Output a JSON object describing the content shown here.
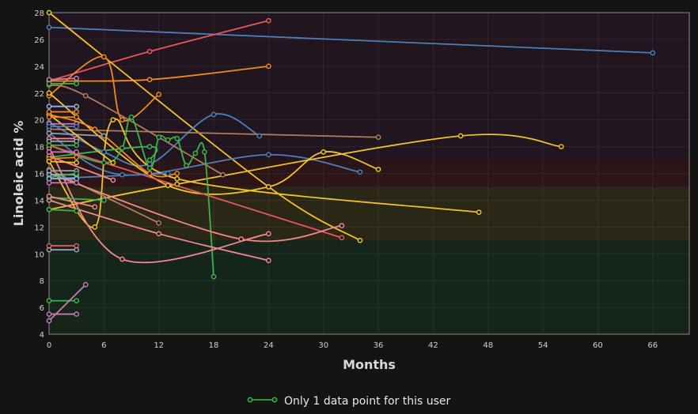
{
  "chart_data": {
    "type": "line",
    "title": "",
    "xlabel": "Months",
    "ylabel": "Linoleic acid %",
    "xlim": [
      0,
      70
    ],
    "ylim": [
      4,
      28
    ],
    "x_ticks": [
      0,
      6,
      12,
      18,
      24,
      30,
      36,
      42,
      48,
      54,
      60,
      66
    ],
    "y_ticks": [
      4,
      6,
      8,
      10,
      12,
      14,
      16,
      18,
      20,
      22,
      24,
      26,
      28
    ],
    "grid": true,
    "legend_position": "bottom-center",
    "legend": [
      {
        "label": "Only 1 data point for this user",
        "color": "#3bb54a"
      }
    ],
    "background_bands": [
      {
        "y_from": 4,
        "y_to": 11,
        "color": "#15251a"
      },
      {
        "y_from": 11,
        "y_to": 15,
        "color": "#2a2716"
      },
      {
        "y_from": 15,
        "y_to": 17,
        "color": "#2b1517"
      },
      {
        "y_from": 17,
        "y_to": 28,
        "color": "#21151f"
      }
    ],
    "series": [
      {
        "color": "#4f7fba",
        "x": [
          0,
          66
        ],
        "y": [
          26.9,
          25.0
        ]
      },
      {
        "color": "#e8575a",
        "x": [
          0,
          11,
          24
        ],
        "y": [
          22.9,
          25.1,
          27.4
        ]
      },
      {
        "color": "#f08a1e",
        "x": [
          0,
          11,
          24
        ],
        "y": [
          22.9,
          23.0,
          24.0
        ]
      },
      {
        "color": "#f2c12e",
        "x": [
          0,
          24,
          34
        ],
        "y": [
          28.0,
          15.0,
          11.0
        ]
      },
      {
        "color": "#f08a1e",
        "x": [
          0,
          6,
          8,
          12
        ],
        "y": [
          21.8,
          24.7,
          20.0,
          21.9
        ]
      },
      {
        "color": "#4f7fba",
        "x": [
          0,
          6,
          11,
          18,
          23
        ],
        "y": [
          19.8,
          17.6,
          16.7,
          20.4,
          18.8
        ]
      },
      {
        "color": "#b07d5e",
        "x": [
          0,
          36
        ],
        "y": [
          19.3,
          18.7
        ]
      },
      {
        "color": "#4f7fba",
        "x": [
          0,
          8,
          24,
          34
        ],
        "y": [
          19.0,
          15.9,
          17.4,
          16.1
        ]
      },
      {
        "color": "#b07d5e",
        "x": [
          0,
          4,
          19
        ],
        "y": [
          22.6,
          21.8,
          15.9
        ]
      },
      {
        "color": "#f2c12e",
        "x": [
          0,
          13,
          24,
          30,
          36
        ],
        "y": [
          22.0,
          15.1,
          15.0,
          17.6,
          16.3
        ]
      },
      {
        "color": "#f2c12e",
        "x": [
          0,
          14,
          45,
          56
        ],
        "y": [
          13.3,
          15.2,
          18.8,
          18.0
        ]
      },
      {
        "color": "#f2c12e",
        "x": [
          0,
          5,
          7,
          14,
          47
        ],
        "y": [
          16.9,
          12.0,
          20.0,
          15.6,
          13.1
        ]
      },
      {
        "color": "#3bb54a",
        "x": [
          0,
          6,
          8,
          9,
          11,
          12,
          13,
          14,
          15,
          16,
          17,
          18
        ],
        "y": [
          18.1,
          16.8,
          17.9,
          20.2,
          16.4,
          18.7,
          18.5,
          18.6,
          16.6,
          17.5,
          17.6,
          8.3
        ]
      },
      {
        "color": "#3bb54a",
        "x": [
          0,
          11,
          11
        ],
        "y": [
          17.2,
          18.0,
          17.0
        ]
      },
      {
        "color": "#e8575a",
        "x": [
          0,
          32
        ],
        "y": [
          18.1,
          11.2
        ]
      },
      {
        "color": "#f08a1e",
        "x": [
          0,
          5,
          11,
          14
        ],
        "y": [
          20.4,
          19.3,
          16.0,
          16.0
        ]
      },
      {
        "color": "#b07d5e",
        "x": [
          0,
          12
        ],
        "y": [
          16.3,
          12.3
        ]
      },
      {
        "color": "#f4888e",
        "x": [
          0,
          8,
          24
        ],
        "y": [
          17.9,
          9.6,
          11.5
        ]
      },
      {
        "color": "#f4888e",
        "x": [
          0,
          12,
          24
        ],
        "y": [
          14.0,
          11.5,
          9.5
        ]
      },
      {
        "color": "#f4888e",
        "x": [
          0,
          21,
          32
        ],
        "y": [
          16.0,
          11.1,
          12.1
        ]
      },
      {
        "color": "#3bb54a",
        "x": [
          0,
          6
        ],
        "y": [
          14.2,
          14.0
        ]
      },
      {
        "color": "#4f7fba",
        "x": [
          0,
          13
        ],
        "y": [
          15.6,
          16.0
        ]
      },
      {
        "color": "#f4888e",
        "x": [
          0,
          5
        ],
        "y": [
          14.3,
          13.5
        ]
      },
      {
        "color": "#9aa3ad",
        "x": [
          0,
          6
        ],
        "y": [
          19.0,
          18.8
        ]
      },
      {
        "color": "#f4888e",
        "x": [
          0,
          7
        ],
        "y": [
          17.3,
          15.5
        ]
      },
      {
        "color": "#f2c12e",
        "x": [
          0,
          7
        ],
        "y": [
          20.4,
          16.8
        ]
      },
      {
        "color": "#3bb54a",
        "x": [
          0,
          3
        ],
        "y": [
          22.7,
          22.7
        ]
      },
      {
        "color": "#c97bb3",
        "x": [
          0,
          3
        ],
        "y": [
          23.0,
          23.1
        ]
      },
      {
        "color": "#93b6dc",
        "x": [
          0,
          3
        ],
        "y": [
          21.0,
          21.0
        ]
      },
      {
        "color": "#f08a1e",
        "x": [
          0,
          3
        ],
        "y": [
          20.6,
          20.6
        ]
      },
      {
        "color": "#f08a1e",
        "x": [
          0,
          3
        ],
        "y": [
          20.2,
          20.2
        ]
      },
      {
        "color": "#c97bb3",
        "x": [
          0,
          3
        ],
        "y": [
          19.7,
          19.7
        ]
      },
      {
        "color": "#4f7fba",
        "x": [
          0,
          3
        ],
        "y": [
          19.5,
          19.5
        ]
      },
      {
        "color": "#f4888e",
        "x": [
          0,
          3
        ],
        "y": [
          18.6,
          18.6
        ]
      },
      {
        "color": "#9aa3ad",
        "x": [
          0,
          3
        ],
        "y": [
          18.4,
          18.4
        ]
      },
      {
        "color": "#3bb54a",
        "x": [
          0,
          3
        ],
        "y": [
          18.1,
          18.1
        ]
      },
      {
        "color": "#c97bb3",
        "x": [
          0,
          3
        ],
        "y": [
          17.6,
          17.6
        ]
      },
      {
        "color": "#f08a1e",
        "x": [
          0,
          3
        ],
        "y": [
          17.1,
          17.2
        ]
      },
      {
        "color": "#f2c12e",
        "x": [
          0,
          3
        ],
        "y": [
          16.9,
          16.8
        ]
      },
      {
        "color": "#9aa3ad",
        "x": [
          0,
          3
        ],
        "y": [
          16.2,
          16.2
        ]
      },
      {
        "color": "#93b6dc",
        "x": [
          0,
          3
        ],
        "y": [
          15.9,
          15.9
        ]
      },
      {
        "color": "#3bb54a",
        "x": [
          0,
          3
        ],
        "y": [
          15.7,
          16.0
        ]
      },
      {
        "color": "#93b6dc",
        "x": [
          0,
          3
        ],
        "y": [
          15.6,
          15.6
        ]
      },
      {
        "color": "#c97bb3",
        "x": [
          0,
          3
        ],
        "y": [
          15.3,
          15.3
        ]
      },
      {
        "color": "#3bb54a",
        "x": [
          0,
          3
        ],
        "y": [
          13.3,
          13.2
        ]
      },
      {
        "color": "#e8575a",
        "x": [
          0,
          3
        ],
        "y": [
          10.6,
          10.6
        ]
      },
      {
        "color": "#9aa3ad",
        "x": [
          0,
          3
        ],
        "y": [
          10.3,
          10.3
        ]
      },
      {
        "color": "#3bb54a",
        "x": [
          0,
          3
        ],
        "y": [
          6.5,
          6.5
        ]
      },
      {
        "color": "#c97bb3",
        "x": [
          0,
          4
        ],
        "y": [
          5.0,
          7.7
        ]
      },
      {
        "color": "#c97bb3",
        "x": [
          0,
          3
        ],
        "y": [
          5.5,
          5.5
        ]
      }
    ]
  }
}
